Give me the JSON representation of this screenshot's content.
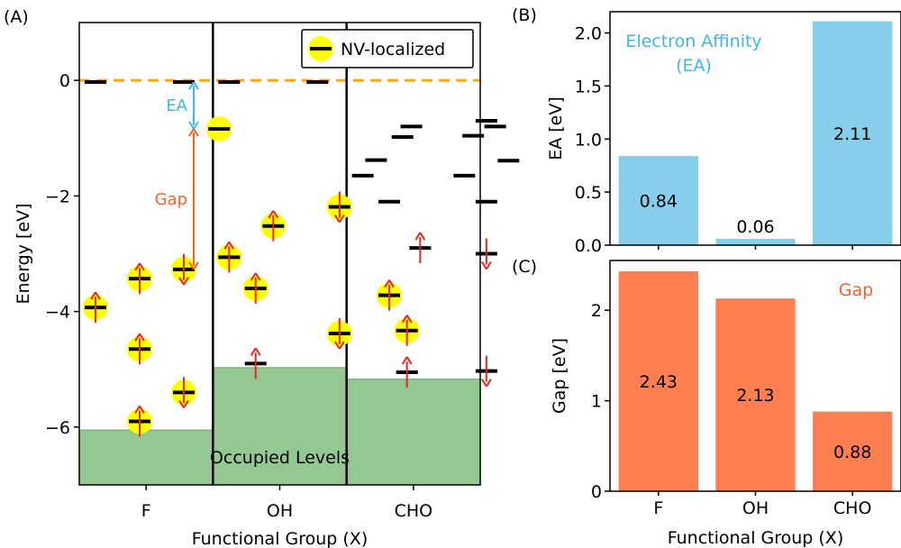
{
  "chart_data": [
    {
      "panel_label": "(A)",
      "type": "energy-level-diagram",
      "ylabel": "Energy [eV]",
      "xlabel": "Functional Group (X)",
      "ylim": [
        -7.0,
        1.0
      ],
      "yticks": [
        0,
        -2,
        -4,
        -6
      ],
      "ytick_labels": [
        "0",
        "−2",
        "−4",
        "−6"
      ],
      "groups": [
        "F",
        "OH",
        "CHO"
      ],
      "reference_line": {
        "y": 0,
        "color": "#f5a623",
        "style": "dashed"
      },
      "legend": {
        "label": "NV-localized",
        "location": "top-right"
      },
      "occupied_label": "Occupied Levels",
      "occupied_color": "#93c893",
      "marker_color": "#ffff00",
      "arrow_color": "#e8251e",
      "occupied_tops": [
        -6.05,
        -4.97,
        -5.17
      ],
      "levels": [
        {
          "group": 0,
          "slot": 0,
          "e": -0.03,
          "nv": false,
          "spin": "none"
        },
        {
          "group": 0,
          "slot": 2,
          "e": -0.03,
          "nv": false,
          "spin": "none"
        },
        {
          "group": 0,
          "slot": 2.8,
          "e": -0.84,
          "nv": true,
          "spin": "none"
        },
        {
          "group": 0,
          "slot": 0,
          "e": -3.93,
          "nv": true,
          "spin": "up"
        },
        {
          "group": 0,
          "slot": 1,
          "e": -3.43,
          "nv": true,
          "spin": "up"
        },
        {
          "group": 0,
          "slot": 2,
          "e": -3.27,
          "nv": true,
          "spin": "down"
        },
        {
          "group": 0,
          "slot": 1,
          "e": -4.65,
          "nv": true,
          "spin": "up"
        },
        {
          "group": 0,
          "slot": 2,
          "e": -5.4,
          "nv": true,
          "spin": "down"
        },
        {
          "group": 0,
          "slot": 1,
          "e": -5.9,
          "nv": true,
          "spin": "up"
        },
        {
          "group": 1,
          "slot": 0,
          "e": -0.03,
          "nv": false,
          "spin": "none"
        },
        {
          "group": 1,
          "slot": 2,
          "e": -0.03,
          "nv": false,
          "spin": "none"
        },
        {
          "group": 1,
          "slot": 0,
          "e": -3.06,
          "nv": true,
          "spin": "up"
        },
        {
          "group": 1,
          "slot": 1,
          "e": -2.52,
          "nv": true,
          "spin": "up"
        },
        {
          "group": 1,
          "slot": 2.5,
          "e": -2.19,
          "nv": true,
          "spin": "down"
        },
        {
          "group": 1,
          "slot": 0.6,
          "e": -3.6,
          "nv": true,
          "spin": "up"
        },
        {
          "group": 1,
          "slot": 2.5,
          "e": -4.38,
          "nv": true,
          "spin": "down"
        },
        {
          "group": 1,
          "slot": 0.6,
          "e": -4.9,
          "nv": false,
          "spin": "up"
        },
        {
          "group": 2,
          "slot": 1.1,
          "e": -0.8,
          "nv": false,
          "spin": "none"
        },
        {
          "group": 2,
          "slot": 0.9,
          "e": -0.98,
          "nv": false,
          "spin": "none"
        },
        {
          "group": 2,
          "slot": 0.3,
          "e": -1.38,
          "nv": false,
          "spin": "none"
        },
        {
          "group": 2,
          "slot": 0,
          "e": -1.65,
          "nv": false,
          "spin": "none"
        },
        {
          "group": 2,
          "slot": 0.6,
          "e": -2.1,
          "nv": false,
          "spin": "none"
        },
        {
          "group": 2,
          "slot": 2.8,
          "e": -0.7,
          "nv": false,
          "spin": "none"
        },
        {
          "group": 2,
          "slot": 3.0,
          "e": -0.8,
          "nv": false,
          "spin": "none"
        },
        {
          "group": 2,
          "slot": 2.5,
          "e": -0.96,
          "nv": false,
          "spin": "none"
        },
        {
          "group": 2,
          "slot": 3.3,
          "e": -1.39,
          "nv": false,
          "spin": "none"
        },
        {
          "group": 2,
          "slot": 2.3,
          "e": -1.65,
          "nv": false,
          "spin": "none"
        },
        {
          "group": 2,
          "slot": 2.8,
          "e": -2.1,
          "nv": false,
          "spin": "none"
        },
        {
          "group": 2,
          "slot": 1.3,
          "e": -2.9,
          "nv": false,
          "spin": "up"
        },
        {
          "group": 2,
          "slot": 2.8,
          "e": -3.0,
          "nv": false,
          "spin": "down"
        },
        {
          "group": 2,
          "slot": 0.6,
          "e": -3.72,
          "nv": true,
          "spin": "up"
        },
        {
          "group": 2,
          "slot": 1.0,
          "e": -4.33,
          "nv": true,
          "spin": "up"
        },
        {
          "group": 2,
          "slot": 1.0,
          "e": -5.05,
          "nv": false,
          "spin": "up"
        },
        {
          "group": 2,
          "slot": 2.8,
          "e": -5.03,
          "nv": false,
          "spin": "down"
        }
      ],
      "annotations": [
        {
          "label": "EA",
          "color": "#3eb5e6",
          "from": -0.03,
          "to": -0.84
        },
        {
          "label": "Gap",
          "color": "#f4622a",
          "from": -0.84,
          "to": -3.27
        }
      ]
    },
    {
      "panel_label": "(B)",
      "type": "bar",
      "categories": [
        "F",
        "OH",
        "CHO"
      ],
      "values": [
        0.84,
        0.06,
        2.11
      ],
      "value_labels": [
        "0.84",
        "0.06",
        "2.11"
      ],
      "ylabel": "EA [eV]",
      "ylim": [
        0,
        2.2
      ],
      "yticks": [
        0.0,
        0.5,
        1.0,
        1.5,
        2.0
      ],
      "ytick_labels": [
        "0.0",
        "0.5",
        "1.0",
        "1.5",
        "2.0"
      ],
      "bar_color": "#87ceeb",
      "title_lines": [
        "Electron Affinity",
        "(EA)"
      ],
      "title_color": "#3eb5e6"
    },
    {
      "panel_label": "(C)",
      "type": "bar",
      "categories": [
        "F",
        "OH",
        "CHO"
      ],
      "values": [
        2.43,
        2.13,
        0.88
      ],
      "value_labels": [
        "2.43",
        "2.13",
        "0.88"
      ],
      "ylabel": "Gap [eV]",
      "xlabel": "Functional Group (X)",
      "ylim": [
        0,
        2.55
      ],
      "yticks": [
        0,
        1,
        2
      ],
      "ytick_labels": [
        "0",
        "1",
        "2"
      ],
      "bar_color": "#ff7f50",
      "title_lines": [
        "Gap"
      ],
      "title_color": "#f4622a"
    }
  ]
}
